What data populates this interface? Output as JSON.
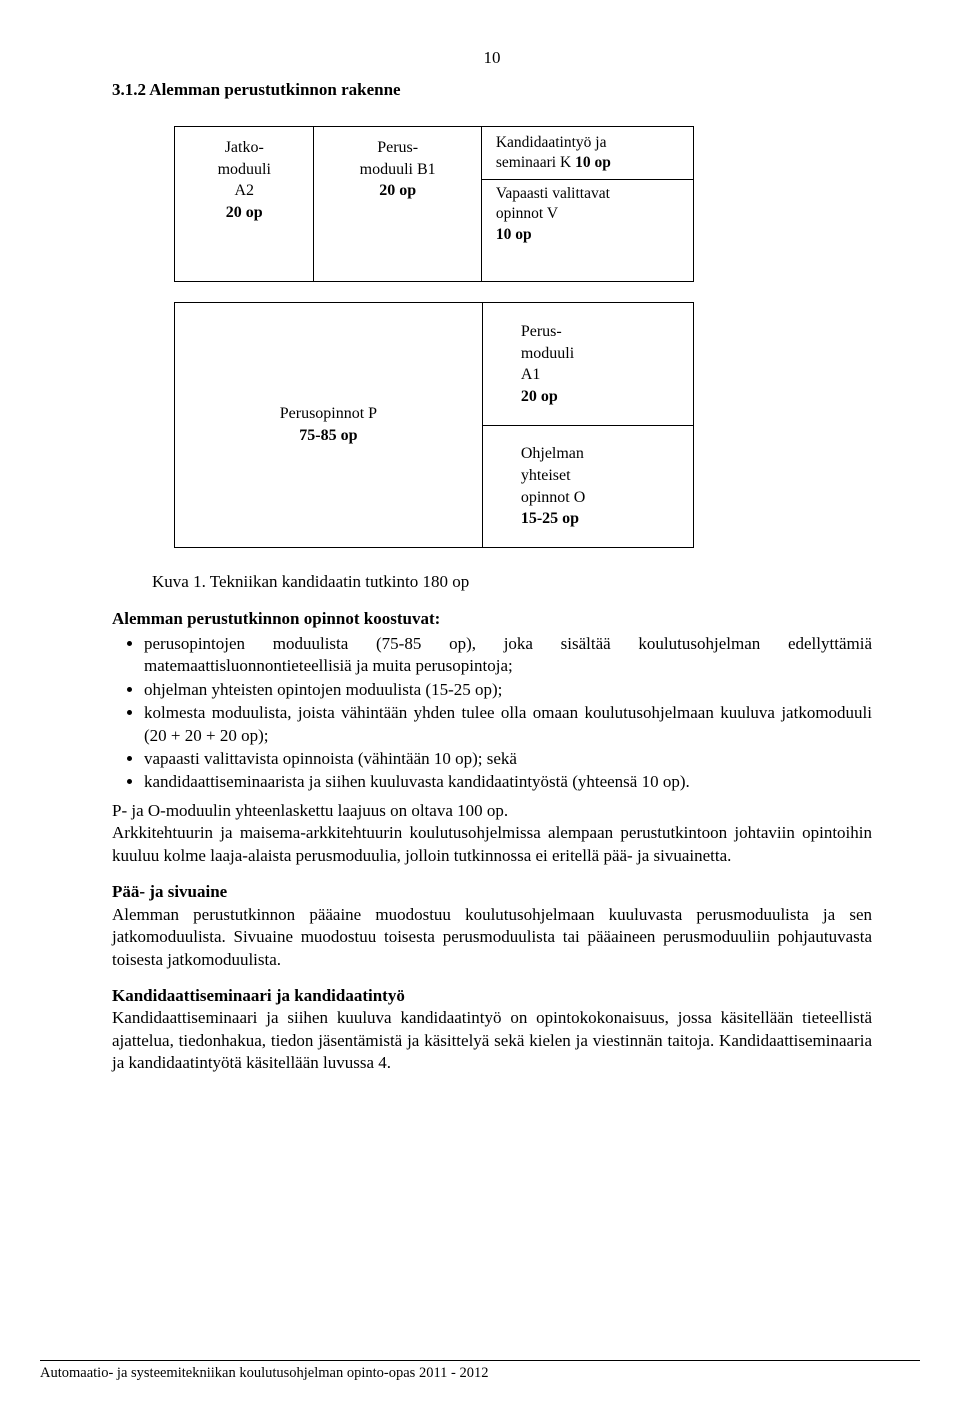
{
  "page_number": "10",
  "section_heading": "3.1.2 Alemman perustutkinnon rakenne",
  "diagram": {
    "jatko": {
      "l1": "Jatko-",
      "l2": "moduuli",
      "l3": "A2",
      "l4": "20 op"
    },
    "perusB1": {
      "l1": "Perus-",
      "l2": "moduuli B1",
      "l3": "20 op"
    },
    "kandi": {
      "l1": "Kandidaatintyö ja",
      "l2_a": "seminaari K ",
      "l2_b": "10 op"
    },
    "vapaat": {
      "l1": "Vapaasti valittavat",
      "l2": "opinnot V",
      "l3": "10 op"
    },
    "perusP": {
      "l1": "Perusopinnot P",
      "l2": "75-85 op"
    },
    "perusA1": {
      "l1": "Perus-",
      "l2": "moduuli",
      "l3": "A1",
      "l4": "20 op"
    },
    "ohjelma": {
      "l1": "Ohjelman",
      "l2": "yhteiset",
      "l3": "opinnot O",
      "l4": "15-25 op"
    }
  },
  "kuva_caption": "Kuva 1. Tekniikan kandidaatin tutkinto 180 op",
  "alemman_heading": "Alemman perustutkinnon opinnot koostuvat:",
  "bullets": [
    "perusopintojen moduulista (75-85 op), joka sisältää koulutusohjelman edellyttämiä matemaattisluonnontieteellisiä ja muita perusopintoja;",
    "ohjelman yhteisten opintojen moduulista (15-25 op);",
    "kolmesta moduulista, joista vähintään yhden tulee olla omaan koulutusohjelmaan kuuluva jatkomoduuli (20 + 20 + 20 op);",
    "vapaasti valittavista opinnoista (vähintään 10 op); sekä",
    "kandidaattiseminaarista ja siihen kuuluvasta kandidaatintyöstä (yhteensä 10 op)."
  ],
  "para_po": "P- ja O-moduulin yhteenlaskettu laajuus on oltava 100 op.",
  "para_arkki": "Arkkitehtuurin ja maisema-arkkitehtuurin koulutusohjelmissa alempaan perustutkintoon johtaviin opintoihin kuuluu kolme laaja-alaista perusmoduulia, jolloin tutkinnossa ei eritellä pää- ja sivuainetta.",
  "paa_heading": "Pää- ja sivuaine",
  "para_paa": "Alemman perustutkinnon pääaine muodostuu koulutusohjelmaan kuuluvasta perusmoduulista ja sen jatkomoduulista. Sivuaine muodostuu toisesta perusmoduulista tai pääaineen perusmoduuliin pohjautuvasta toisesta jatkomoduulista.",
  "kandi_heading": "Kandidaattiseminaari ja kandidaatintyö",
  "para_kandi": "Kandidaattiseminaari ja siihen kuuluva kandidaatintyö on opintokokonaisuus, jossa käsitellään tieteellistä ajattelua, tiedonhakua, tiedon jäsentämistä ja käsittelyä sekä kielen ja viestinnän taitoja. Kandidaattiseminaaria ja kandidaatintyötä käsitellään luvussa 4.",
  "footer": "Automaatio- ja systeemitekniikan koulutusohjelman opinto-opas 2011 - 2012"
}
